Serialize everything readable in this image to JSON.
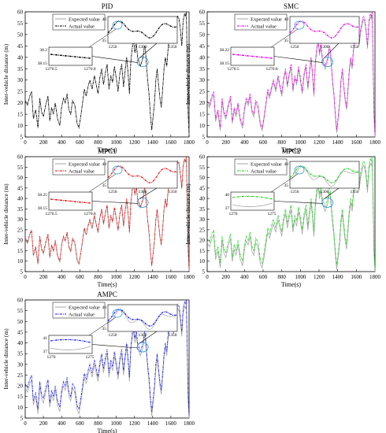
{
  "chart_data": [
    {
      "type": "line",
      "title": "PID",
      "xlabel": "Time(s)",
      "ylabel": "Inter-vehicle distance (m)",
      "xlim": [
        0,
        1800
      ],
      "ylim": [
        5,
        60
      ],
      "xticks": [
        0,
        200,
        400,
        600,
        800,
        1000,
        1200,
        1400,
        1600,
        1800
      ],
      "yticks": [
        5,
        10,
        15,
        20,
        25,
        30,
        35,
        40,
        45,
        50,
        55,
        60
      ],
      "grid": false,
      "legend": "top-left",
      "series": [
        {
          "name": "Expected value",
          "color": "#a6a6a6"
        },
        {
          "name": "Actual value",
          "color": "#000000"
        }
      ],
      "inset_zoom": {
        "x_ticks": [
          "1250",
          "1300",
          "1350"
        ],
        "y_ticks": [
          "35",
          "40"
        ]
      },
      "inset_detail": {
        "x_ticks": [
          "1270.5",
          "1270.8"
        ],
        "y_ticks": [
          "38.2",
          "38.15"
        ]
      }
    },
    {
      "type": "line",
      "title": "SMC",
      "xlabel": "Time(s)",
      "ylabel": "Inter-vehicle distance (m)",
      "xlim": [
        0,
        1800
      ],
      "ylim": [
        5,
        60
      ],
      "xticks": [
        0,
        200,
        400,
        600,
        800,
        1000,
        1200,
        1400,
        1600,
        1800
      ],
      "yticks": [
        5,
        10,
        15,
        20,
        25,
        30,
        35,
        40,
        45,
        50,
        55,
        60
      ],
      "grid": false,
      "legend": "top-left",
      "series": [
        {
          "name": "Expected value",
          "color": "#a6a6a6"
        },
        {
          "name": "Actual value",
          "color": "#e000e0"
        }
      ],
      "inset_zoom": {
        "x_ticks": [
          "1250",
          "1300",
          "1350"
        ],
        "y_ticks": [
          "35",
          "40"
        ]
      },
      "inset_detail": {
        "x_ticks": [
          "1270.5",
          "1270.8"
        ],
        "y_ticks": [
          "38.22",
          "38.15"
        ]
      }
    },
    {
      "type": "line",
      "title": "MPC1",
      "xlabel": "Time(s)",
      "ylabel": "Inter-vehicle distance (m)",
      "xlim": [
        0,
        1800
      ],
      "ylim": [
        5,
        60
      ],
      "xticks": [
        0,
        200,
        400,
        600,
        800,
        1000,
        1200,
        1400,
        1600,
        1800
      ],
      "yticks": [
        5,
        10,
        15,
        20,
        25,
        30,
        35,
        40,
        45,
        50,
        55,
        60
      ],
      "grid": false,
      "legend": "top-left",
      "series": [
        {
          "name": "Expected value",
          "color": "#a6a6a6"
        },
        {
          "name": "Actual value",
          "color": "#e01010"
        }
      ],
      "inset_zoom": {
        "x_ticks": [
          "1250",
          "1300",
          "1350"
        ],
        "y_ticks": [
          "35",
          "40"
        ]
      },
      "inset_detail": {
        "x_ticks": [
          "1270.5",
          "1270.8"
        ],
        "y_ticks": [
          "38.25",
          "38.15"
        ]
      }
    },
    {
      "type": "line",
      "title": "MPC2",
      "xlabel": "Time(s)",
      "ylabel": "Inter-vehicle distance (m)",
      "xlim": [
        0,
        1800
      ],
      "ylim": [
        5,
        60
      ],
      "xticks": [
        0,
        200,
        400,
        600,
        800,
        1000,
        1200,
        1400,
        1600,
        1800
      ],
      "yticks": [
        5,
        10,
        15,
        20,
        25,
        30,
        35,
        40,
        45,
        50,
        55,
        60
      ],
      "grid": false,
      "legend": "top-left",
      "series": [
        {
          "name": "Expected value",
          "color": "#a6a6a6"
        },
        {
          "name": "Actual value",
          "color": "#22cc22"
        }
      ],
      "inset_zoom": {
        "x_ticks": [
          "1250",
          "1300",
          "1350"
        ],
        "y_ticks": [
          "35",
          "40"
        ]
      },
      "inset_detail": {
        "x_ticks": [
          "1270",
          "1275"
        ],
        "y_ticks": [
          "40",
          "37"
        ]
      }
    },
    {
      "type": "line",
      "title": "AMPC",
      "xlabel": "Time(s)",
      "ylabel": "Inter-vehicle distance (m)",
      "xlim": [
        0,
        1800
      ],
      "ylim": [
        5,
        60
      ],
      "xticks": [
        0,
        200,
        400,
        600,
        800,
        1000,
        1200,
        1400,
        1600,
        1800
      ],
      "yticks": [
        5,
        10,
        15,
        20,
        25,
        30,
        35,
        40,
        45,
        50,
        55,
        60
      ],
      "grid": false,
      "legend": "top-left",
      "series": [
        {
          "name": "Expected value",
          "color": "#a6a6a6"
        },
        {
          "name": "Actual value",
          "color": "#1a1ae6"
        }
      ],
      "inset_zoom": {
        "x_ticks": [
          "1250",
          "1300",
          "1350"
        ],
        "y_ticks": [
          "35",
          "40"
        ]
      },
      "inset_detail": {
        "x_ticks": [
          "1270",
          "1275"
        ],
        "y_ticks": [
          "41",
          "37"
        ]
      }
    }
  ],
  "trace": {
    "time": [
      0,
      25,
      50,
      70,
      90,
      115,
      140,
      160,
      180,
      200,
      225,
      250,
      270,
      290,
      310,
      330,
      355,
      380,
      400,
      420,
      440,
      460,
      480,
      500,
      520,
      545,
      570,
      590,
      610,
      630,
      650,
      670,
      690,
      710,
      735,
      760,
      780,
      800,
      820,
      840,
      860,
      880,
      900,
      920,
      940,
      960,
      980,
      1000,
      1020,
      1040,
      1060,
      1080,
      1100,
      1115,
      1130,
      1145,
      1160,
      1175,
      1190,
      1205,
      1220,
      1235,
      1250,
      1265,
      1280,
      1295,
      1310,
      1320,
      1330,
      1345,
      1360,
      1375,
      1390,
      1405,
      1420,
      1435,
      1450,
      1465,
      1480,
      1495,
      1510,
      1525,
      1540,
      1555,
      1570,
      1585,
      1600,
      1615,
      1630,
      1645,
      1660,
      1675,
      1690,
      1705,
      1720,
      1735,
      1750,
      1760,
      1770,
      1780,
      1790,
      1800
    ],
    "distance": [
      21,
      19,
      23,
      25,
      13,
      17,
      9,
      22,
      16,
      14,
      19,
      23,
      12,
      18,
      15,
      20,
      13,
      10,
      18,
      22,
      20,
      24,
      17,
      15,
      21,
      19,
      11,
      9,
      14,
      20,
      26,
      23,
      27,
      30,
      26,
      32,
      28,
      24,
      31,
      35,
      28,
      33,
      37,
      26,
      32,
      29,
      36,
      31,
      25,
      33,
      37,
      27,
      35,
      40,
      33,
      24,
      38,
      44,
      48,
      42,
      46,
      40,
      38,
      36,
      38,
      40,
      45,
      44,
      38,
      30,
      24,
      15,
      8,
      14,
      20,
      30,
      35,
      28,
      22,
      18,
      26,
      35,
      40,
      36,
      44,
      49,
      54,
      50,
      46,
      52,
      55,
      58,
      57,
      52,
      45,
      56,
      59,
      58,
      60,
      38,
      15,
      6
    ]
  }
}
